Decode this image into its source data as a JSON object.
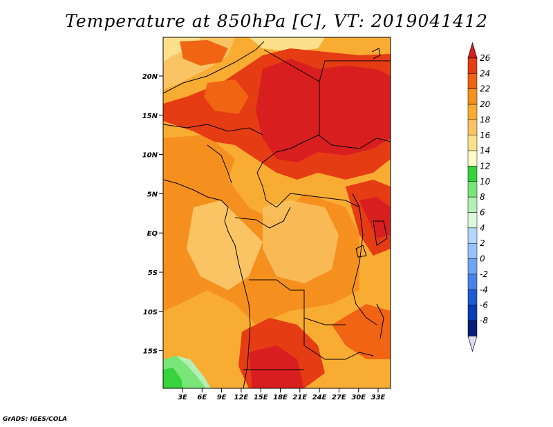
{
  "title": "Temperature at 850hPa [C], VT: 2019041412",
  "credit": "GrADS: IGES/COLA",
  "map": {
    "lat_labels": [
      "20N",
      "15N",
      "10N",
      "5N",
      "EQ",
      "5S",
      "10S",
      "15S"
    ],
    "lon_labels": [
      "3E",
      "6E",
      "9E",
      "12E",
      "15E",
      "18E",
      "21E",
      "24E",
      "27E",
      "30E",
      "33E"
    ]
  },
  "colorbar": {
    "labels": [
      "26",
      "24",
      "22",
      "20",
      "18",
      "16",
      "14",
      "12",
      "10",
      "8",
      "6",
      "4",
      "2",
      "0",
      "-2",
      "-4",
      "-6",
      "-8"
    ],
    "colors": [
      "#d81e1e",
      "#e53c14",
      "#f06414",
      "#f5901e",
      "#f9ac32",
      "#fac464",
      "#fde08c",
      "#fffac8",
      "#37d23c",
      "#78e678",
      "#b4f0b4",
      "#dcfadc",
      "#b4d7ff",
      "#96c3ff",
      "#6ea5f5",
      "#4b82e6",
      "#1e5ad2",
      "#0a3cb4",
      "#0a1e78",
      "#dcdcf5"
    ]
  }
}
